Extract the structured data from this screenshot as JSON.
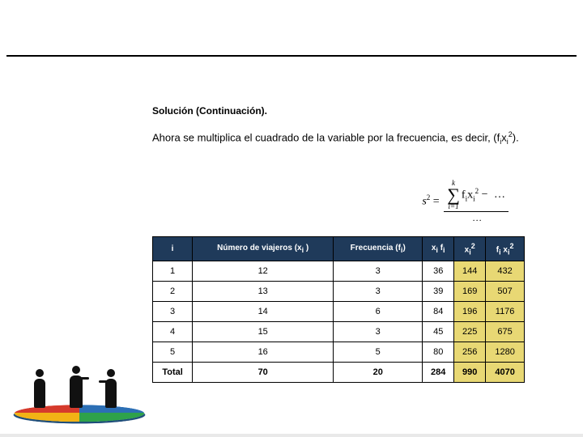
{
  "section_title": "Solución (Continuación).",
  "body_html": "Ahora se multiplica el cuadrado de la variable por la frecuencia, es decir, (f<sub>i</sub>x<sub>i</sub><sup>2</sup>).",
  "formula": {
    "lhs": "s",
    "lhs_sup": "2",
    "sum_upper": "k",
    "sum_lower": "i=1",
    "term_html": "f<sub>i</sub>x<sub>i</sub><sup>2</sup>",
    "minus_dots": "…",
    "denom_dots": "…"
  },
  "table": {
    "headers": [
      "i",
      "Número de viajeros (x<sub>i</sub> )",
      "Frecuencia (f<sub>i</sub>)",
      "x<sub>i</sub> f<sub>i</sub>",
      "x<sub>i</sub><sup>2</sup>",
      "f<sub>i</sub> x<sub>i</sub><sup>2</sup>"
    ],
    "highlight_cols": [
      4,
      5
    ],
    "rows": [
      [
        "1",
        "12",
        "3",
        "36",
        "144",
        "432"
      ],
      [
        "2",
        "13",
        "3",
        "39",
        "169",
        "507"
      ],
      [
        "3",
        "14",
        "6",
        "84",
        "196",
        "1176"
      ],
      [
        "4",
        "15",
        "3",
        "45",
        "225",
        "675"
      ],
      [
        "5",
        "16",
        "5",
        "80",
        "256",
        "1280"
      ]
    ],
    "total_label": "Total",
    "total": [
      "70",
      "20",
      "284",
      "990",
      "4070"
    ]
  },
  "colors": {
    "header_bg": "#1f3a5a",
    "header_fg": "#ffffff",
    "highlight_bg": "#e8d874",
    "border": "#000000",
    "disc": [
      "#2c6fb5",
      "#2ea24a",
      "#f2b315",
      "#d63a2c"
    ]
  }
}
